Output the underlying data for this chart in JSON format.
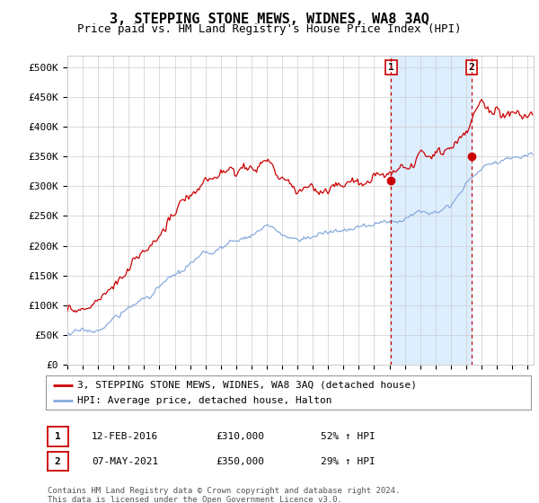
{
  "title": "3, STEPPING STONE MEWS, WIDNES, WA8 3AQ",
  "subtitle": "Price paid vs. HM Land Registry's House Price Index (HPI)",
  "ytick_labels": [
    "£0",
    "£50K",
    "£100K",
    "£150K",
    "£200K",
    "£250K",
    "£300K",
    "£350K",
    "£400K",
    "£450K",
    "£500K"
  ],
  "ytick_values": [
    0,
    50000,
    100000,
    150000,
    200000,
    250000,
    300000,
    350000,
    400000,
    450000,
    500000
  ],
  "ylim": [
    0,
    520000
  ],
  "xlim_start": 1995.0,
  "xlim_end": 2025.4,
  "hpi_color": "#88aadd",
  "price_color": "#cc0000",
  "shade_color": "#ddeeff",
  "marker1_x": 2016.11,
  "marker1_y": 310000,
  "marker2_x": 2021.36,
  "marker2_y": 350000,
  "legend_label1": "3, STEPPING STONE MEWS, WIDNES, WA8 3AQ (detached house)",
  "legend_label2": "HPI: Average price, detached house, Halton",
  "annot1_label": "1",
  "annot1_date": "12-FEB-2016",
  "annot1_price": "£310,000",
  "annot1_hpi": "52% ↑ HPI",
  "annot2_label": "2",
  "annot2_date": "07-MAY-2021",
  "annot2_price": "£350,000",
  "annot2_hpi": "29% ↑ HPI",
  "footer": "Contains HM Land Registry data © Crown copyright and database right 2024.\nThis data is licensed under the Open Government Licence v3.0.",
  "background_color": "#ffffff",
  "grid_color": "#cccccc",
  "vline_color": "#cc0000",
  "vline_style": "--",
  "title_fontsize": 11,
  "subtitle_fontsize": 9,
  "tick_fontsize": 8,
  "legend_fontsize": 8
}
